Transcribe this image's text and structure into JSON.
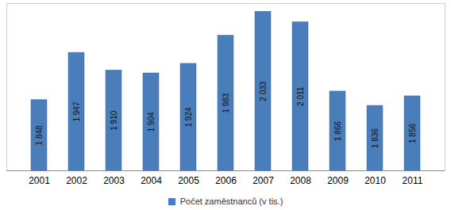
{
  "chart_data": {
    "type": "bar",
    "categories": [
      "2001",
      "2002",
      "2003",
      "2004",
      "2005",
      "2006",
      "2007",
      "2008",
      "2009",
      "2010",
      "2011"
    ],
    "series": [
      {
        "name": "Počet zaměstnanců (v tis.)",
        "color": "#4a7ebb",
        "values": [
          1848,
          1947,
          1910,
          1904,
          1924,
          1983,
          2033,
          2011,
          1866,
          1836,
          1856
        ],
        "value_labels": [
          "1 848",
          "1 947",
          "1 910",
          "1 904",
          "1 924",
          "1 983",
          "2 033",
          "2 011",
          "1 866",
          "1 836",
          "1 856"
        ]
      }
    ],
    "ylim": [
      1700,
      2050
    ],
    "data_labels": true,
    "tick_labels": "x",
    "legend": "bottom"
  }
}
